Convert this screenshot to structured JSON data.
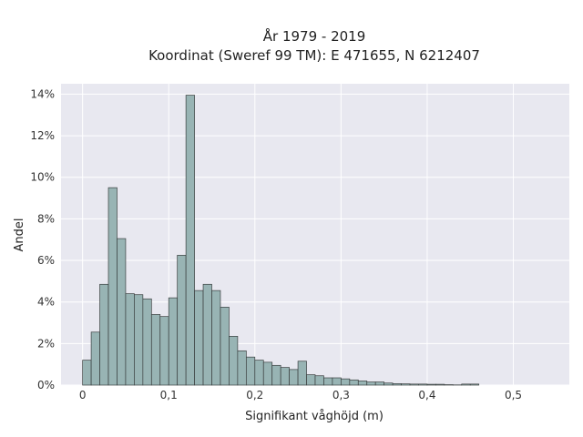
{
  "chart_data": {
    "type": "bar",
    "title_lines": [
      "År 1979 - 2019",
      "Koordinat (Sweref 99 TM): E 471655, N 6212407"
    ],
    "xlabel": "Signifikant våghöjd (m)",
    "ylabel": "Andel",
    "xlim": [
      -0.025,
      0.565
    ],
    "ylim": [
      0,
      14.5
    ],
    "bin_width": 0.01,
    "bin_starts": [
      0.0,
      0.01,
      0.02,
      0.03,
      0.04,
      0.05,
      0.06,
      0.07,
      0.08,
      0.09,
      0.1,
      0.11,
      0.12,
      0.13,
      0.14,
      0.15,
      0.16,
      0.17,
      0.18,
      0.19,
      0.2,
      0.21,
      0.22,
      0.23,
      0.24,
      0.25,
      0.26,
      0.27,
      0.28,
      0.29,
      0.3,
      0.31,
      0.32,
      0.33,
      0.34,
      0.35,
      0.36,
      0.37,
      0.38,
      0.39,
      0.4,
      0.41,
      0.42,
      0.43,
      0.44,
      0.45
    ],
    "values": [
      1.2,
      2.55,
      4.85,
      9.5,
      7.05,
      4.4,
      4.35,
      4.15,
      3.4,
      3.3,
      4.2,
      6.25,
      13.95,
      4.55,
      4.85,
      4.55,
      3.75,
      2.35,
      1.65,
      1.35,
      1.2,
      1.1,
      0.95,
      0.85,
      0.75,
      1.15,
      0.5,
      0.45,
      0.35,
      0.35,
      0.3,
      0.25,
      0.2,
      0.15,
      0.15,
      0.1,
      0.07,
      0.06,
      0.05,
      0.05,
      0.04,
      0.04,
      0.02,
      0.01,
      0.05,
      0.05
    ],
    "x_ticks": [
      0,
      0.1,
      0.2,
      0.3,
      0.4,
      0.5
    ],
    "x_tick_labels": [
      "0",
      "0,1",
      "0,2",
      "0,3",
      "0,4",
      "0,5"
    ],
    "y_ticks": [
      0,
      2,
      4,
      6,
      8,
      10,
      12,
      14
    ],
    "y_tick_labels": [
      "0%",
      "2%",
      "4%",
      "6%",
      "8%",
      "10%",
      "12%",
      "14%"
    ],
    "grid": true,
    "colors": {
      "plot_bg": "#e8e8f0",
      "grid": "#ffffff",
      "bar_fill": "#98b4b4",
      "bar_stroke": "#3a3f3f"
    }
  }
}
